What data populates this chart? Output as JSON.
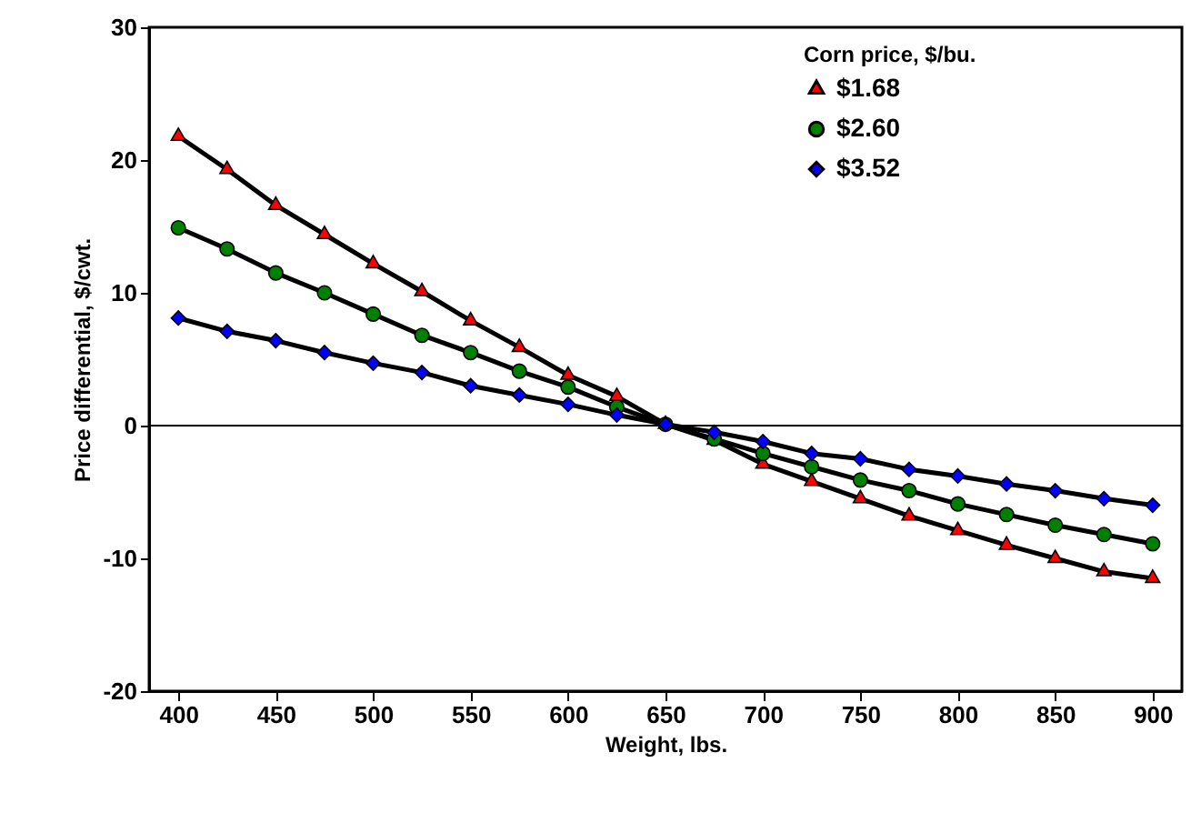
{
  "chart_data": {
    "type": "line",
    "xlabel": "Weight, lbs.",
    "ylabel": "Price differential, $/cwt.",
    "legend_title": "Corn price, $/bu.",
    "legend": "top right",
    "grid": false,
    "x": [
      400,
      425,
      450,
      475,
      500,
      525,
      550,
      575,
      600,
      625,
      650,
      675,
      700,
      725,
      750,
      775,
      800,
      825,
      850,
      875,
      900
    ],
    "xlim": [
      385,
      915
    ],
    "xticks": [
      400,
      450,
      500,
      550,
      600,
      650,
      700,
      750,
      800,
      850,
      900
    ],
    "ylim": [
      -20,
      30
    ],
    "yticks": [
      -20,
      -10,
      0,
      10,
      20,
      30
    ],
    "ref_lines": [
      {
        "axis": "y",
        "value": 0
      }
    ],
    "series": [
      {
        "name": "$1.68",
        "color": "#ff0000",
        "marker": "triangle",
        "values": [
          21.8,
          19.3,
          16.6,
          14.4,
          12.2,
          10.1,
          7.9,
          5.9,
          3.8,
          2.2,
          0.1,
          -1.1,
          -2.9,
          -4.2,
          -5.5,
          -6.8,
          -7.9,
          -9.0,
          -10.0,
          -11.0,
          -11.5
        ]
      },
      {
        "name": "$2.60",
        "color": "#008000",
        "marker": "circle",
        "values": [
          14.9,
          13.3,
          11.5,
          10.0,
          8.4,
          6.8,
          5.5,
          4.1,
          2.9,
          1.4,
          0.1,
          -1.0,
          -2.1,
          -3.1,
          -4.1,
          -4.9,
          -5.9,
          -6.7,
          -7.5,
          -8.2,
          -8.9
        ]
      },
      {
        "name": "$3.52",
        "color": "#0000ff",
        "marker": "diamond",
        "values": [
          8.1,
          7.1,
          6.4,
          5.5,
          4.7,
          4.0,
          3.0,
          2.3,
          1.6,
          0.8,
          0.1,
          -0.5,
          -1.2,
          -2.1,
          -2.5,
          -3.3,
          -3.8,
          -4.4,
          -4.9,
          -5.5,
          -6.0
        ]
      }
    ]
  }
}
